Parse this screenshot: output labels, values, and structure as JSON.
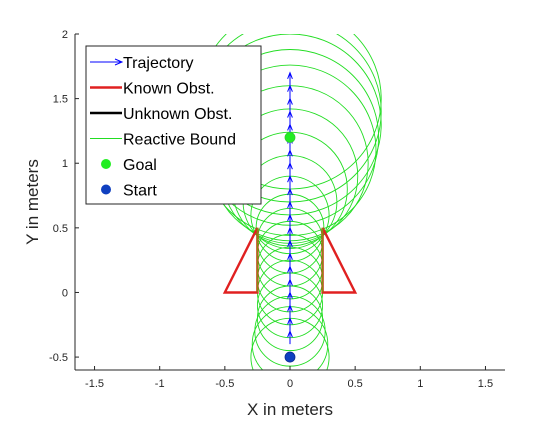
{
  "chart_data": {
    "type": "scatter",
    "xlabel": "X in meters",
    "ylabel": "Y in meters",
    "xlim": [
      -1.65,
      1.65
    ],
    "ylim": [
      -0.6,
      2.0
    ],
    "xticks": [
      -1.5,
      -1,
      -0.5,
      0,
      0.5,
      1,
      1.5
    ],
    "yticks": [
      -0.5,
      0,
      0.5,
      1,
      1.5,
      2
    ],
    "xtick_labels": [
      "-1.5",
      "-1",
      "-0.5",
      "0",
      "0.5",
      "1",
      "1.5"
    ],
    "ytick_labels": [
      "-0.5",
      "0",
      "0.5",
      "1",
      "1.5",
      "2"
    ],
    "grid": false,
    "legend_position": "top-left",
    "legend": [
      {
        "label": "Trajectory",
        "key": "trajectory"
      },
      {
        "label": "Known Obst.",
        "key": "known"
      },
      {
        "label": "Unknown Obst.",
        "key": "unknown"
      },
      {
        "label": "Reactive Bound",
        "key": "bound"
      },
      {
        "label": "Goal",
        "key": "goal"
      },
      {
        "label": "Start",
        "key": "start"
      }
    ],
    "colors": {
      "trajectory": "#0000ff",
      "known": "#e02020",
      "unknown": "#000000",
      "bound": "#22dd22",
      "goal": "#22ee22",
      "start": "#1040c0"
    },
    "trajectory": {
      "x": 0,
      "y_start": -0.4,
      "y_step": 0.1,
      "count": 21
    },
    "known_obstacles": [
      [
        [
          -0.25,
          0.5
        ],
        [
          -0.25,
          0
        ],
        [
          -0.5,
          0
        ],
        [
          -0.25,
          0.5
        ]
      ],
      [
        [
          0.25,
          0.5
        ],
        [
          0.25,
          0
        ],
        [
          0.5,
          0
        ],
        [
          0.25,
          0.5
        ]
      ]
    ],
    "unknown_obstacles": [
      [
        [
          -0.25,
          0
        ],
        [
          -0.25,
          0.5
        ]
      ],
      [
        [
          0.25,
          0
        ],
        [
          0.25,
          0.5
        ]
      ]
    ],
    "reactive_bounds": [
      {
        "x": 0,
        "y": -0.5,
        "r": 0.3
      },
      {
        "x": 0,
        "y": -0.4,
        "r": 0.29
      },
      {
        "x": 0,
        "y": -0.3,
        "r": 0.27
      },
      {
        "x": 0,
        "y": -0.2,
        "r": 0.25
      },
      {
        "x": 0,
        "y": -0.1,
        "r": 0.25
      },
      {
        "x": 0,
        "y": 0.0,
        "r": 0.25
      },
      {
        "x": 0,
        "y": 0.1,
        "r": 0.25
      },
      {
        "x": 0,
        "y": 0.2,
        "r": 0.25
      },
      {
        "x": 0,
        "y": 0.3,
        "r": 0.25
      },
      {
        "x": 0,
        "y": 0.4,
        "r": 0.25
      },
      {
        "x": 0,
        "y": 0.5,
        "r": 0.26
      },
      {
        "x": 0,
        "y": 0.6,
        "r": 0.3
      },
      {
        "x": 0,
        "y": 0.7,
        "r": 0.36
      },
      {
        "x": 0,
        "y": 0.8,
        "r": 0.44
      },
      {
        "x": 0,
        "y": 0.9,
        "r": 0.52
      },
      {
        "x": 0,
        "y": 1.0,
        "r": 0.6
      },
      {
        "x": 0,
        "y": 1.1,
        "r": 0.66
      },
      {
        "x": 0,
        "y": 1.2,
        "r": 0.68
      },
      {
        "x": 0,
        "y": 1.3,
        "r": 0.7
      },
      {
        "x": 0,
        "y": 1.4,
        "r": 0.7
      },
      {
        "x": 0,
        "y": 1.5,
        "r": 0.7
      }
    ],
    "goal": {
      "x": 0,
      "y": 1.2
    },
    "start": {
      "x": 0,
      "y": -0.5
    }
  }
}
